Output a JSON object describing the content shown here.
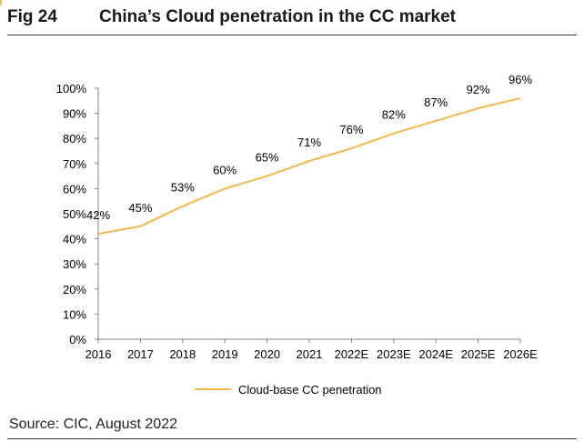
{
  "figure": {
    "number": "Fig 24",
    "title": "China’s Cloud penetration in the CC market",
    "source": "Source: CIC, August 2022"
  },
  "colors": {
    "line": "#F5B74A",
    "axis": "#808080"
  },
  "chart_data": {
    "type": "line",
    "categories": [
      "2016",
      "2017",
      "2018",
      "2019",
      "2020",
      "2021",
      "2022E",
      "2023E",
      "2024E",
      "2025E",
      "2026E"
    ],
    "series": [
      {
        "name": "Cloud-base CC penetration",
        "values": [
          42,
          45,
          53,
          60,
          65,
          71,
          76,
          82,
          87,
          92,
          96
        ],
        "labels": [
          "42%",
          "45%",
          "53%",
          "60%",
          "65%",
          "71%",
          "76%",
          "82%",
          "87%",
          "92%",
          "96%"
        ]
      }
    ],
    "ylim": [
      0,
      100
    ],
    "y_ticks": [
      "0%",
      "10%",
      "20%",
      "30%",
      "40%",
      "50%",
      "60%",
      "70%",
      "80%",
      "90%",
      "100%"
    ],
    "xlabel": "",
    "ylabel": "",
    "grid": false,
    "legend_position": "bottom"
  }
}
